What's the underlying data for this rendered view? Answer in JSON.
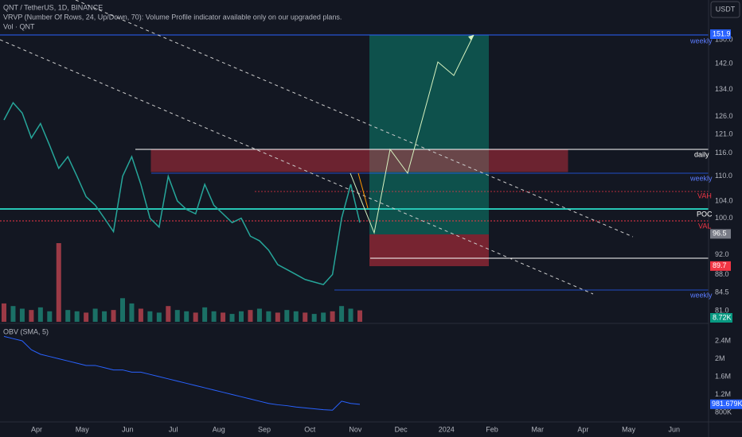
{
  "header": {
    "symbol": "QNT / TetherUS, 1D, BINANCE",
    "vrvp": "VRVP (Number Of Rows, 24, Up/Down, 70): Volume Profile indicator available only on our upgraded plans.",
    "volume": "Vol · QNT",
    "currency": "USDT"
  },
  "price_axis": {
    "ticks": [
      {
        "value": 150,
        "label": "150.0"
      },
      {
        "value": 142,
        "label": "142.0"
      },
      {
        "value": 134,
        "label": "134.0"
      },
      {
        "value": 126,
        "label": "126.0"
      },
      {
        "value": 121,
        "label": "121.0"
      },
      {
        "value": 116,
        "label": "116.0"
      },
      {
        "value": 110,
        "label": "110.0"
      },
      {
        "value": 104,
        "label": "104.0"
      },
      {
        "value": 100,
        "label": "100.0"
      },
      {
        "value": 92,
        "label": "92.0"
      },
      {
        "value": 88,
        "label": "88.0"
      },
      {
        "value": 84.5,
        "label": "84.5"
      }
    ],
    "badges": [
      {
        "value": 151.9,
        "label": "151.9",
        "color": "#2962ff"
      },
      {
        "value": 96.5,
        "label": "96.5",
        "color": "#787b86"
      },
      {
        "value": 89.7,
        "label": "89.7",
        "color": "#f23645"
      }
    ]
  },
  "annotations": {
    "weekly_top": "weekly",
    "daily": "daily",
    "weekly_mid": "weekly",
    "weekly_low": "weekly",
    "vah": "VAH",
    "poc": "POC",
    "val": "VAL"
  },
  "price": {
    "values": [
      125,
      130,
      127,
      120,
      124,
      118,
      112,
      115,
      110,
      105,
      103,
      100,
      97,
      110,
      115,
      108,
      100,
      98,
      110,
      104,
      102,
      101,
      108,
      103,
      101,
      99,
      100,
      96,
      95,
      93,
      90,
      89,
      88,
      87,
      86.5,
      86,
      88,
      100,
      108,
      99
    ]
  },
  "volume": {
    "values": [
      14,
      12,
      10,
      9,
      11,
      8,
      60,
      9,
      8,
      7,
      10,
      8,
      9,
      18,
      14,
      10,
      8,
      7,
      12,
      9,
      8,
      7,
      11,
      8,
      7,
      6,
      8,
      9,
      10,
      8,
      7,
      9,
      8,
      7,
      6,
      7,
      8,
      12,
      10,
      8.72
    ],
    "last_label": "8.72K",
    "axis_label": "81.0"
  },
  "obv": {
    "title": "OBV (SMA, 5)",
    "values": [
      2.5,
      2.45,
      2.4,
      2.2,
      2.1,
      2.05,
      2.0,
      1.95,
      1.9,
      1.85,
      1.85,
      1.8,
      1.75,
      1.75,
      1.7,
      1.7,
      1.65,
      1.6,
      1.55,
      1.5,
      1.45,
      1.4,
      1.35,
      1.3,
      1.25,
      1.2,
      1.15,
      1.1,
      1.05,
      1.0,
      0.97,
      0.95,
      0.92,
      0.9,
      0.88,
      0.86,
      0.85,
      1.05,
      1.0,
      0.98
    ],
    "ticks": [
      {
        "value": 2.4,
        "label": "2.4M"
      },
      {
        "value": 2,
        "label": "2M"
      },
      {
        "value": 1.6,
        "label": "1.6M"
      },
      {
        "value": 1.2,
        "label": "1.2M"
      },
      {
        "value": 0.8,
        "label": "800K"
      }
    ],
    "badge": {
      "value": 0.981679,
      "label": "981.679K"
    }
  },
  "time_axis": [
    "Apr",
    "May",
    "Jun",
    "Jul",
    "Aug",
    "Sep",
    "Oct",
    "Nov",
    "Dec",
    "2024",
    "Feb",
    "Mar",
    "Apr",
    "May",
    "Jun"
  ]
}
